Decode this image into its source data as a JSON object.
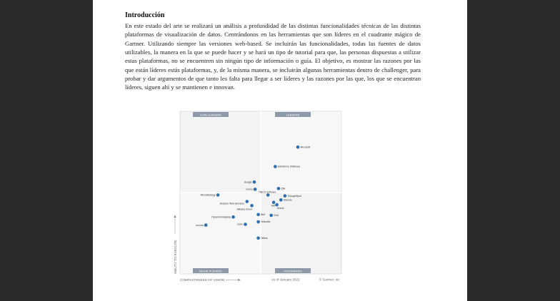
{
  "document": {
    "heading": "Introducción",
    "paragraph": "En este estado del arte se realizará un análisis a profundidad de las distintas funcionalidades técnicas de las distintas plataformas de visualización de datos. Centrándonos en las herramientas que son líderes en el cuadrante mágico de Gartner. Utilizando siempre las versiones web-based. Se incluirán las funcionalidades, todas las fuentes de datos utilizables, la manera en la que se puede hacer y se hará un tipo de tutorial para que, las personas dispuestas a utilizar estas plataformas, no se encuentren sin ningún tipo de información o guía. El objetivo, es mostrar las razones por las que están líderes estás plataformas, y, de la misma manera, se incluirán algunas herramientas dentro de challenger, para probar y dar argumentos de que tanto les falta para llegar a ser líderes y las razones por las que, los que se encuentran líderes, siguen ahí y se mantienen e innovan."
  },
  "magic_quadrant": {
    "quadrants": {
      "challengers": "CHALLENGERS",
      "leaders": "LEADERS",
      "niche_players": "NICHE PLAYERS",
      "visionaries": "VISIONARIES"
    },
    "y_axis_label": "ABILITY TO EXECUTE",
    "x_axis_label": "COMPLETENESS OF VISION",
    "date_note": "As of January 2022",
    "copyright": "© Gartner, Inc",
    "dot_color": "#2c6fb0",
    "vendors": [
      {
        "name": "Microsoft",
        "vision": 0.73,
        "execute": 0.78,
        "label_side": "right"
      },
      {
        "name": "Salesforce (Tableau)",
        "vision": 0.59,
        "execute": 0.66,
        "label_side": "right"
      },
      {
        "name": "Qlik",
        "vision": 0.61,
        "execute": 0.525,
        "label_side": "right"
      },
      {
        "name": "Google",
        "vision": 0.46,
        "execute": 0.565,
        "label_side": "left"
      },
      {
        "name": "Domo",
        "vision": 0.465,
        "execute": 0.52,
        "label_side": "left"
      },
      {
        "name": "MicroStrategy",
        "vision": 0.235,
        "execute": 0.485,
        "label_side": "left"
      },
      {
        "name": "TIBCO Software",
        "vision": 0.545,
        "execute": 0.485,
        "label_side": "none"
      },
      {
        "name": "ThoughtSpot",
        "vision": 0.65,
        "execute": 0.48,
        "label_side": "right"
      },
      {
        "name": "Sisense",
        "vision": 0.625,
        "execute": 0.455,
        "label_side": "none"
      },
      {
        "name": "SAP",
        "vision": 0.58,
        "execute": 0.44,
        "label_side": "none"
      },
      {
        "name": "Oracle",
        "vision": 0.6,
        "execute": 0.425,
        "label_side": "none"
      },
      {
        "name": "Amazon Web Services",
        "vision": 0.415,
        "execute": 0.445,
        "label_side": "none"
      },
      {
        "name": "Alibaba Cloud",
        "vision": 0.445,
        "execute": 0.42,
        "label_side": "none"
      },
      {
        "name": "Pyramid Analytics",
        "vision": 0.33,
        "execute": 0.35,
        "label_side": "left"
      },
      {
        "name": "IBM",
        "vision": 0.485,
        "execute": 0.365,
        "label_side": "right"
      },
      {
        "name": "SAS",
        "vision": 0.565,
        "execute": 0.36,
        "label_side": "right"
      },
      {
        "name": "Yellowfin",
        "vision": 0.485,
        "execute": 0.32,
        "label_side": "right"
      },
      {
        "name": "Zoho",
        "vision": 0.405,
        "execute": 0.305,
        "label_side": "left"
      },
      {
        "name": "Incorta",
        "vision": 0.16,
        "execute": 0.3,
        "label_side": "left"
      },
      {
        "name": "Tellius",
        "vision": 0.485,
        "execute": 0.22,
        "label_side": "right"
      }
    ]
  }
}
